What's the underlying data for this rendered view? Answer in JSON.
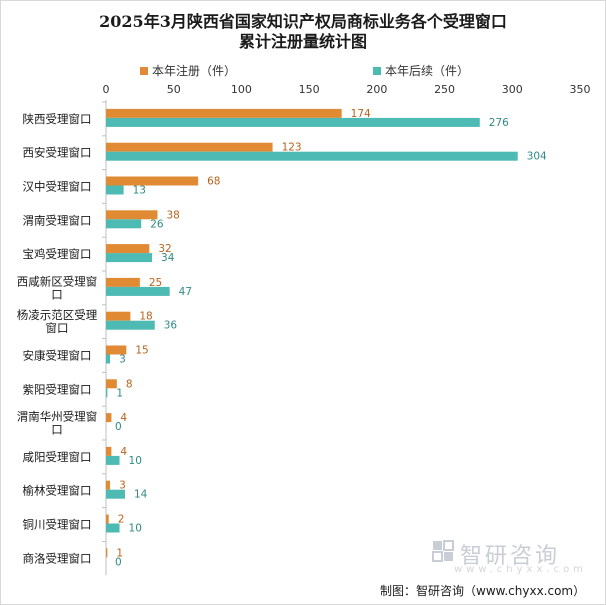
{
  "chart_data": {
    "type": "bar",
    "orientation": "horizontal",
    "title_line1": "2025年3月陕西省国家知识产权局商标业务各个受理窗口",
    "title_line2": "累计注册量统计图",
    "categories": [
      "陕西受理窗口",
      "西安受理窗口",
      "汉中受理窗口",
      "渭南受理窗口",
      "宝鸡受理窗口",
      "西咸新区受理窗口",
      "杨凌示范区受理窗口",
      "安康受理窗口",
      "紫阳受理窗口",
      "渭南华州受理窗口",
      "咸阳受理窗口",
      "榆林受理窗口",
      "铜川受理窗口",
      "商洛受理窗口"
    ],
    "category_lines": [
      [
        "陕西受理窗口"
      ],
      [
        "西安受理窗口"
      ],
      [
        "汉中受理窗口"
      ],
      [
        "渭南受理窗口"
      ],
      [
        "宝鸡受理窗口"
      ],
      [
        "西咸新区受理窗",
        "口"
      ],
      [
        "杨凌示范区受理",
        "窗口"
      ],
      [
        "安康受理窗口"
      ],
      [
        "紫阳受理窗口"
      ],
      [
        "渭南华州受理窗",
        "口"
      ],
      [
        "咸阳受理窗口"
      ],
      [
        "榆林受理窗口"
      ],
      [
        "铜川受理窗口"
      ],
      [
        "商洛受理窗口"
      ]
    ],
    "series": [
      {
        "name": "本年注册（件）",
        "color": "#e08a33",
        "label_color": "#b8621d",
        "values": [
          174,
          123,
          68,
          38,
          32,
          25,
          18,
          15,
          8,
          4,
          4,
          3,
          2,
          1
        ]
      },
      {
        "name": "本年后续（件）",
        "color": "#4ebab4",
        "label_color": "#2f8a86",
        "values": [
          276,
          304,
          13,
          26,
          34,
          47,
          36,
          3,
          1,
          0,
          10,
          14,
          10,
          0
        ]
      }
    ],
    "xlim": [
      0,
      350
    ],
    "xticks": [
      0,
      50,
      100,
      150,
      200,
      250,
      300,
      350
    ],
    "axis_position": "top",
    "legend_position": "top",
    "grid": false
  },
  "watermark": {
    "text": "智研咨询",
    "url": "www.chyxx.com"
  },
  "source": "制图：智研咨询（www.chyxx.com）"
}
